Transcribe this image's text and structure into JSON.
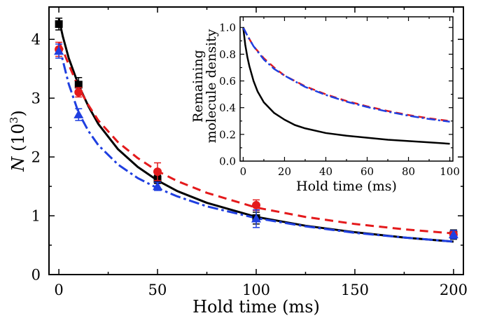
{
  "chart_data": [
    {
      "type": "scatter",
      "xlabel": "Hold time (ms)",
      "ylabel_main": "N",
      "ylabel_unit": "(10",
      "ylabel_exp": "3",
      "ylabel_close": ")",
      "xlim": [
        -5,
        205
      ],
      "ylim": [
        0,
        4.55
      ],
      "xticks": [
        "0",
        "50",
        "100",
        "150",
        "200"
      ],
      "xtick_values": [
        0,
        50,
        100,
        150,
        200
      ],
      "yticks": [
        "0",
        "1",
        "2",
        "3",
        "4"
      ],
      "ytick_values": [
        0,
        1,
        2,
        3,
        4
      ],
      "series": [
        {
          "marker": "square",
          "color": "#000000",
          "x": [
            0,
            10,
            50,
            100,
            200
          ],
          "y": [
            4.26,
            3.23,
            1.62,
            0.96,
            0.68
          ],
          "err": [
            0.1,
            0.12,
            0.07,
            0.1,
            0.08
          ]
        },
        {
          "marker": "circle",
          "color": "#e41a1c",
          "x": [
            0,
            10,
            50,
            100,
            200
          ],
          "y": [
            3.83,
            3.1,
            1.75,
            1.18,
            0.68
          ],
          "err": [
            0.12,
            0.08,
            0.15,
            0.09,
            0.06
          ]
        },
        {
          "marker": "triangle",
          "color": "#1f3fe0",
          "x": [
            0,
            10,
            50,
            100,
            200
          ],
          "y": [
            3.8,
            2.72,
            1.5,
            0.95,
            0.68
          ],
          "err": [
            0.12,
            0.1,
            0.07,
            0.15,
            0.07
          ]
        }
      ],
      "fits": [
        {
          "style": "solid",
          "color": "#000000",
          "x": [
            0,
            2,
            5,
            10,
            15,
            20,
            30,
            40,
            50,
            60,
            75,
            100,
            125,
            150,
            175,
            200
          ],
          "y": [
            4.35,
            4.05,
            3.68,
            3.22,
            2.86,
            2.56,
            2.13,
            1.83,
            1.6,
            1.42,
            1.22,
            0.98,
            0.83,
            0.72,
            0.63,
            0.56
          ]
        },
        {
          "style": "dashed",
          "color": "#e41a1c",
          "x": [
            0,
            2,
            5,
            10,
            15,
            20,
            30,
            40,
            50,
            60,
            75,
            100,
            125,
            150,
            175,
            200
          ],
          "y": [
            3.95,
            3.82,
            3.57,
            3.18,
            2.88,
            2.62,
            2.25,
            1.98,
            1.76,
            1.59,
            1.39,
            1.14,
            0.98,
            0.86,
            0.77,
            0.7
          ]
        },
        {
          "style": "dashdot",
          "color": "#1f3fe0",
          "x": [
            0,
            2,
            5,
            10,
            15,
            20,
            30,
            40,
            50,
            60,
            75,
            100,
            125,
            150,
            175,
            200
          ],
          "y": [
            3.92,
            3.64,
            3.24,
            2.75,
            2.44,
            2.2,
            1.87,
            1.64,
            1.47,
            1.33,
            1.16,
            0.96,
            0.82,
            0.71,
            0.63,
            0.56
          ]
        }
      ]
    },
    {
      "type": "line",
      "xlabel": "Hold time (ms)",
      "ylabel_line1": "Remaining",
      "ylabel_line2": "molecule density",
      "xlim": [
        -1.5,
        101.5
      ],
      "ylim": [
        0,
        1.08
      ],
      "xticks": [
        "0",
        "20",
        "40",
        "60",
        "80",
        "100"
      ],
      "xtick_values": [
        0,
        20,
        40,
        60,
        80,
        100
      ],
      "yticks": [
        "0.0",
        "0.2",
        "0.4",
        "0.6",
        "0.8",
        "1.0"
      ],
      "ytick_values": [
        0,
        0.2,
        0.4,
        0.6,
        0.8,
        1.0
      ],
      "series": [
        {
          "style": "solid",
          "color": "#000000",
          "x": [
            0,
            1,
            2,
            3,
            5,
            7,
            10,
            15,
            20,
            25,
            30,
            40,
            50,
            60,
            70,
            80,
            90,
            100
          ],
          "y": [
            1.0,
            0.87,
            0.78,
            0.71,
            0.6,
            0.52,
            0.44,
            0.36,
            0.31,
            0.27,
            0.245,
            0.21,
            0.19,
            0.175,
            0.16,
            0.15,
            0.14,
            0.13
          ]
        },
        {
          "style": "dashed",
          "color": "#e41a1c",
          "x": [
            0,
            2,
            5,
            10,
            15,
            20,
            30,
            40,
            50,
            60,
            70,
            80,
            90,
            100
          ],
          "y": [
            1.0,
            0.94,
            0.86,
            0.77,
            0.7,
            0.64,
            0.56,
            0.5,
            0.45,
            0.41,
            0.375,
            0.345,
            0.32,
            0.3
          ]
        },
        {
          "style": "dashdot",
          "color": "#1f3fe0",
          "x": [
            0,
            2,
            5,
            10,
            15,
            20,
            30,
            40,
            50,
            60,
            70,
            80,
            90,
            100
          ],
          "y": [
            1.0,
            0.94,
            0.86,
            0.76,
            0.69,
            0.64,
            0.555,
            0.495,
            0.445,
            0.405,
            0.37,
            0.34,
            0.315,
            0.295
          ]
        }
      ]
    }
  ]
}
